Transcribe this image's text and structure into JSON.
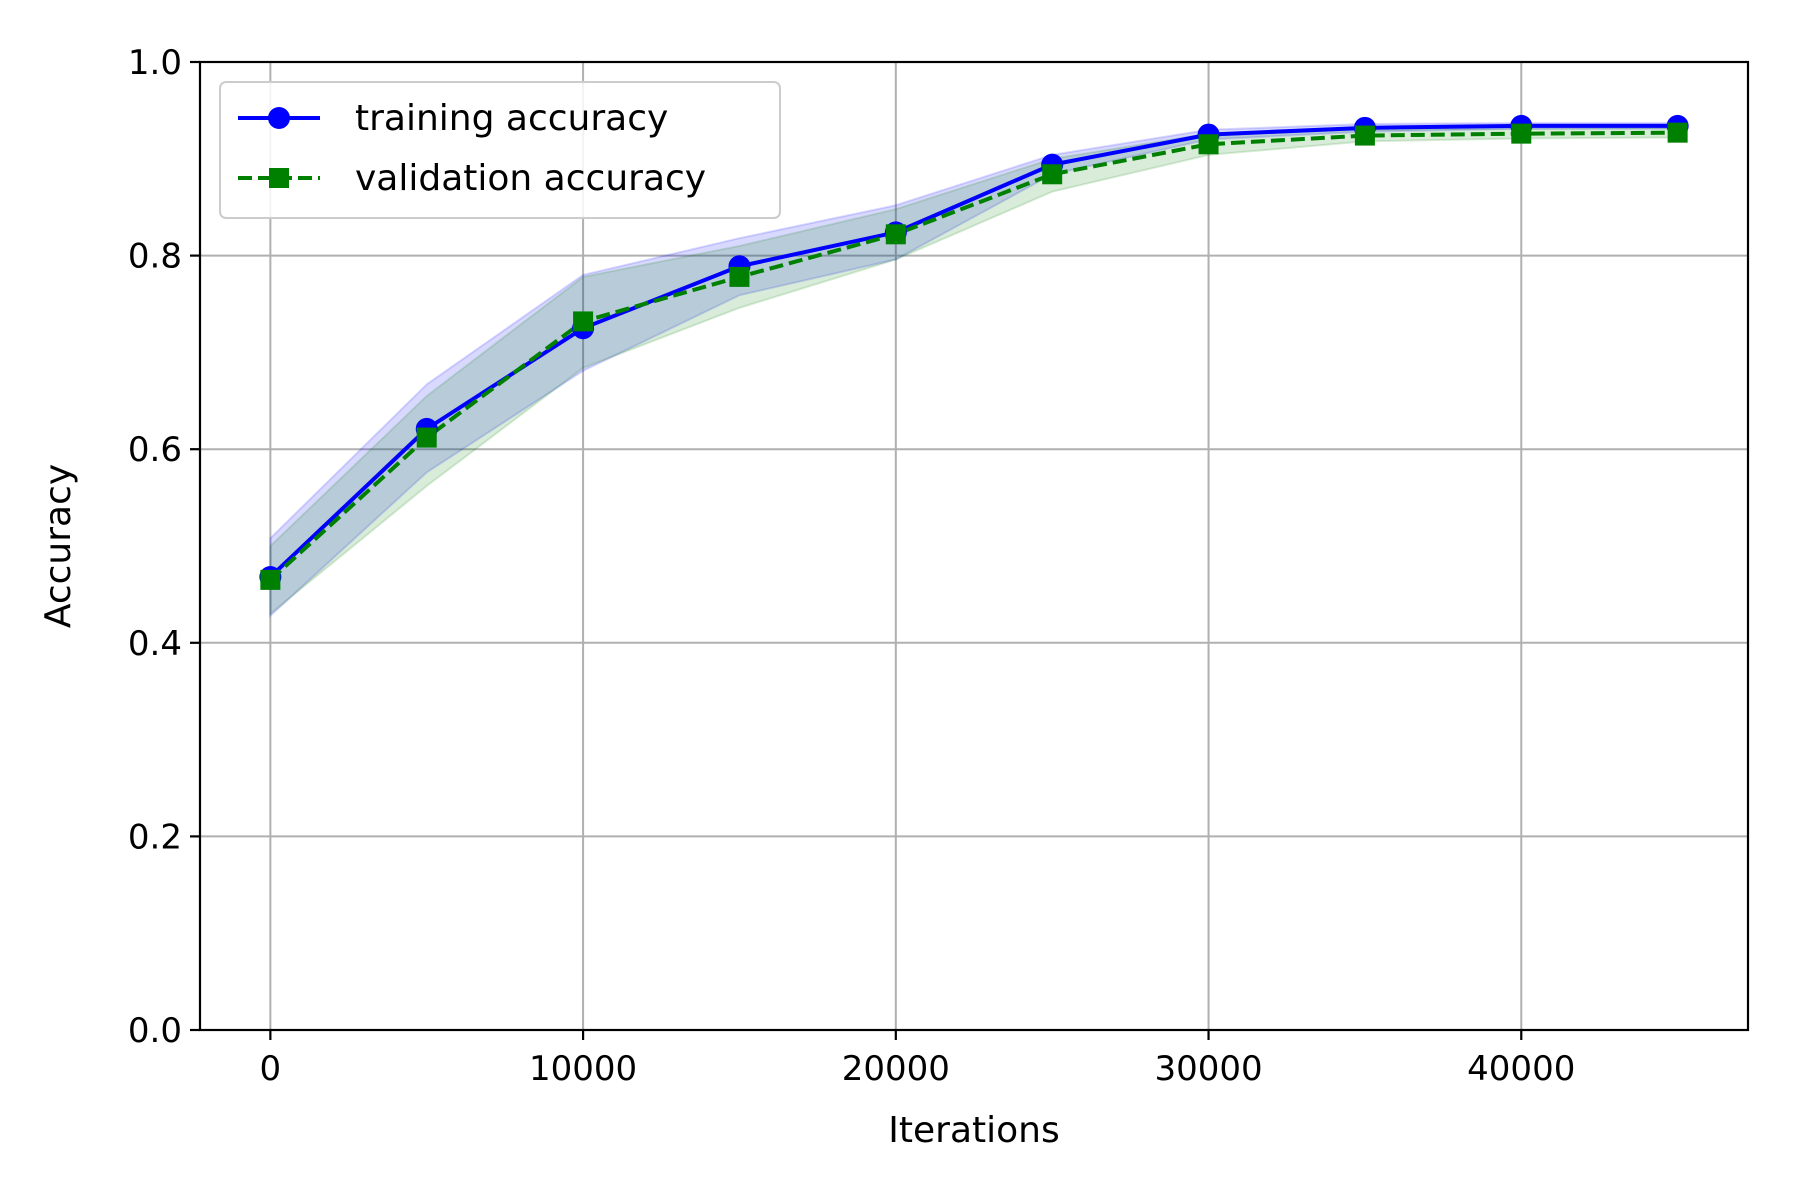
{
  "chart_data": {
    "type": "line",
    "title": "",
    "xlabel": "Iterations",
    "ylabel": "Accuracy",
    "xlim": [
      -2250,
      47250
    ],
    "ylim": [
      0.0,
      1.0
    ],
    "xticks": [
      0,
      10000,
      20000,
      30000,
      40000
    ],
    "xtick_labels": [
      "0",
      "10000",
      "20000",
      "30000",
      "40000"
    ],
    "yticks": [
      0.0,
      0.2,
      0.4,
      0.6,
      0.8,
      1.0
    ],
    "ytick_labels": [
      "0.0",
      "0.2",
      "0.4",
      "0.6",
      "0.8",
      "1.0"
    ],
    "grid": true,
    "legend_position": "upper-left",
    "x": [
      0,
      5000,
      10000,
      15000,
      20000,
      25000,
      30000,
      35000,
      40000,
      45000
    ],
    "series": [
      {
        "name": "training accuracy",
        "color": "#0000ff",
        "marker": "circle",
        "line_style": "solid",
        "values": [
          0.468,
          0.621,
          0.725,
          0.789,
          0.824,
          0.894,
          0.925,
          0.932,
          0.934,
          0.934
        ],
        "band_upper": [
          0.508,
          0.667,
          0.78,
          0.818,
          0.852,
          0.904,
          0.93,
          0.936,
          0.937,
          0.937
        ],
        "band_lower": [
          0.428,
          0.576,
          0.681,
          0.759,
          0.796,
          0.884,
          0.92,
          0.928,
          0.931,
          0.931
        ]
      },
      {
        "name": "validation accuracy",
        "color": "#008000",
        "marker": "square",
        "line_style": "dashed",
        "values": [
          0.465,
          0.612,
          0.732,
          0.778,
          0.822,
          0.884,
          0.915,
          0.924,
          0.926,
          0.927
        ],
        "band_upper": [
          0.5,
          0.655,
          0.778,
          0.81,
          0.848,
          0.9,
          0.926,
          0.93,
          0.931,
          0.932
        ],
        "band_lower": [
          0.43,
          0.562,
          0.684,
          0.746,
          0.796,
          0.866,
          0.904,
          0.918,
          0.921,
          0.922
        ]
      }
    ]
  }
}
